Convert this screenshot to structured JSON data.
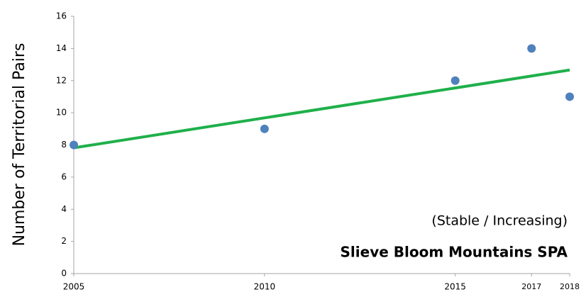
{
  "chart_data": {
    "type": "scatter",
    "y_label": "Number of Territorial Pairs",
    "annotations": [
      "(Stable / Increasing)",
      "Slieve Bloom Mountains SPA"
    ],
    "x": [
      2005,
      2010,
      2015,
      2017,
      2018
    ],
    "series": [
      {
        "color": "#4f81bd",
        "values": [
          8,
          9,
          12,
          14,
          11
        ]
      }
    ],
    "trendline": {
      "x": [
        2005,
        2018
      ],
      "values": [
        7.82,
        12.66
      ],
      "color": "#1fb04a"
    },
    "xlim": [
      2005,
      2018
    ],
    "xticks": [
      2005,
      2010,
      2015,
      2017,
      2018
    ],
    "ylim": [
      0,
      16
    ],
    "yticks": [
      0,
      2,
      4,
      6,
      8,
      10,
      12,
      14,
      16
    ],
    "grid": false
  }
}
